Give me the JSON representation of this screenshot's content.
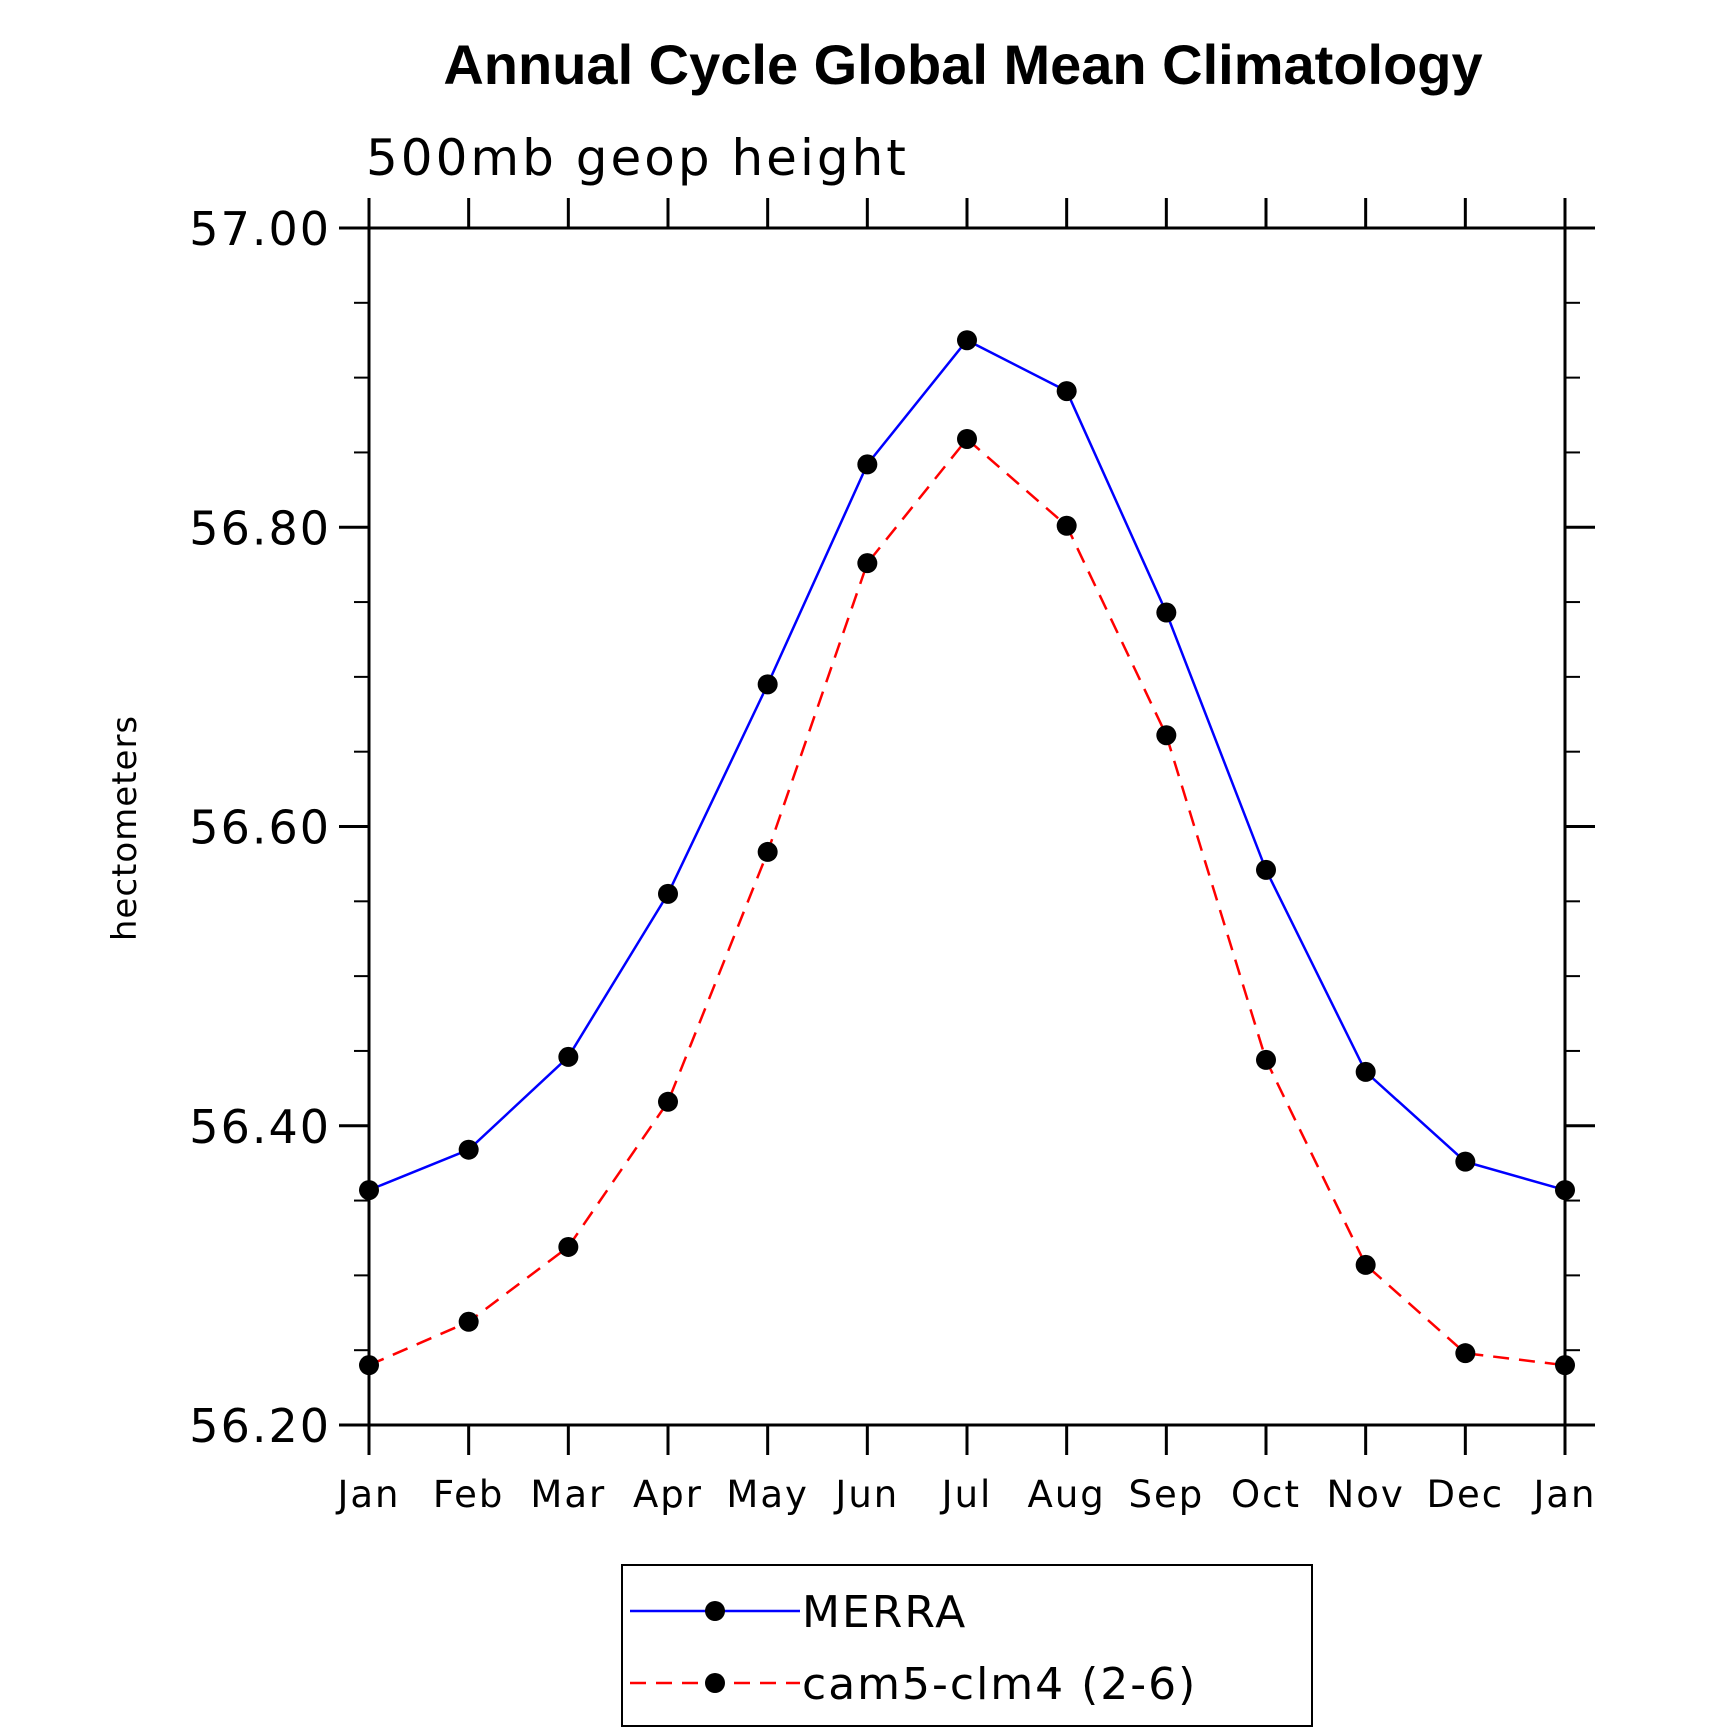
{
  "chart_data": {
    "type": "line",
    "title": "Annual Cycle Global Mean Climatology",
    "subtitle": "500mb geop height",
    "xlabel": "",
    "ylabel": "hectometers",
    "categories": [
      "Jan",
      "Feb",
      "Mar",
      "Apr",
      "May",
      "Jun",
      "Jul",
      "Aug",
      "Sep",
      "Oct",
      "Nov",
      "Dec",
      "Jan"
    ],
    "ylim": [
      56.2,
      57.0
    ],
    "yticks": [
      "56.20",
      "56.40",
      "56.60",
      "56.80",
      "57.00"
    ],
    "grid": false,
    "legend_position": "bottom-center",
    "series": [
      {
        "name": "MERRA",
        "color": "#0000ff",
        "line_style": "solid",
        "marker": "filled-circle",
        "values": [
          56.357,
          56.384,
          56.446,
          56.555,
          56.695,
          56.842,
          56.925,
          56.891,
          56.743,
          56.571,
          56.436,
          56.376,
          56.357
        ]
      },
      {
        "name": "cam5-clm4 (2-6)",
        "color": "#ff0000",
        "line_style": "dashed",
        "marker": "filled-circle",
        "values": [
          56.24,
          56.269,
          56.319,
          56.416,
          56.583,
          56.776,
          56.859,
          56.801,
          56.661,
          56.444,
          56.307,
          56.248,
          56.24
        ]
      }
    ]
  }
}
